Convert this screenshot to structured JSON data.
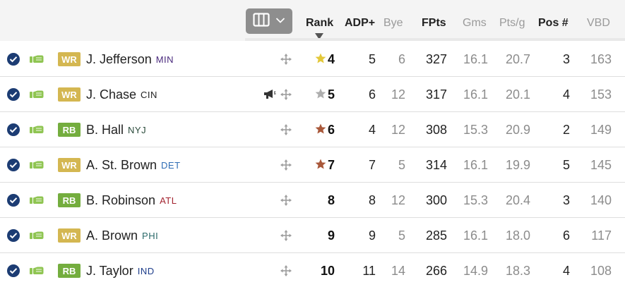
{
  "header": {
    "columns_button_icon": "columns-icon",
    "columns_button_chevron": "chevron-down-icon",
    "rank": "Rank",
    "adp": "ADP+",
    "bye": "Bye",
    "fpts": "FPts",
    "gms": "Gms",
    "ptsg": "Pts/g",
    "posnum": "Pos #",
    "vbd": "VBD",
    "sort_indicator": "sort-descending-arrow-icon"
  },
  "colors": {
    "wr_badge": "#d4b751",
    "rb_badge": "#74ad3e",
    "check": "#1c3c73",
    "hand": "#8fc552",
    "star_gold": "#e3c83a",
    "star_silver": "#aeaeae",
    "star_bronze": "#a9583a"
  },
  "players": [
    {
      "pos": "WR",
      "name": "J. Jefferson",
      "team": "MIN",
      "team_color": "#4a2a7d",
      "star": "gold",
      "news": false,
      "rank": "4",
      "adp": "5",
      "bye": "6",
      "fpts": "327",
      "gms": "16.1",
      "ptsg": "20.7",
      "posnum": "3",
      "vbd": "163"
    },
    {
      "pos": "WR",
      "name": "J. Chase",
      "team": "CIN",
      "team_color": "#222222",
      "star": "silver",
      "news": true,
      "rank": "5",
      "adp": "6",
      "bye": "12",
      "fpts": "317",
      "gms": "16.1",
      "ptsg": "20.1",
      "posnum": "4",
      "vbd": "153"
    },
    {
      "pos": "RB",
      "name": "B. Hall",
      "team": "NYJ",
      "team_color": "#2a4a3a",
      "star": "bronze",
      "news": false,
      "rank": "6",
      "adp": "4",
      "bye": "12",
      "fpts": "308",
      "gms": "15.3",
      "ptsg": "20.9",
      "posnum": "2",
      "vbd": "149"
    },
    {
      "pos": "WR",
      "name": "A. St. Brown",
      "team": "DET",
      "team_color": "#2f6db5",
      "star": "bronze",
      "news": false,
      "rank": "7",
      "adp": "7",
      "bye": "5",
      "fpts": "314",
      "gms": "16.1",
      "ptsg": "19.9",
      "posnum": "5",
      "vbd": "145"
    },
    {
      "pos": "RB",
      "name": "B. Robinson",
      "team": "ATL",
      "team_color": "#a3232f",
      "star": "none",
      "news": false,
      "rank": "8",
      "adp": "8",
      "bye": "12",
      "fpts": "300",
      "gms": "15.3",
      "ptsg": "20.4",
      "posnum": "3",
      "vbd": "140"
    },
    {
      "pos": "WR",
      "name": "A. Brown",
      "team": "PHI",
      "team_color": "#2b6a6a",
      "star": "none",
      "news": false,
      "rank": "9",
      "adp": "9",
      "bye": "5",
      "fpts": "285",
      "gms": "16.1",
      "ptsg": "18.0",
      "posnum": "6",
      "vbd": "117"
    },
    {
      "pos": "RB",
      "name": "J. Taylor",
      "team": "IND",
      "team_color": "#1c3c8a",
      "star": "none",
      "news": false,
      "rank": "10",
      "adp": "11",
      "bye": "14",
      "fpts": "266",
      "gms": "14.9",
      "ptsg": "18.3",
      "posnum": "4",
      "vbd": "108"
    }
  ]
}
